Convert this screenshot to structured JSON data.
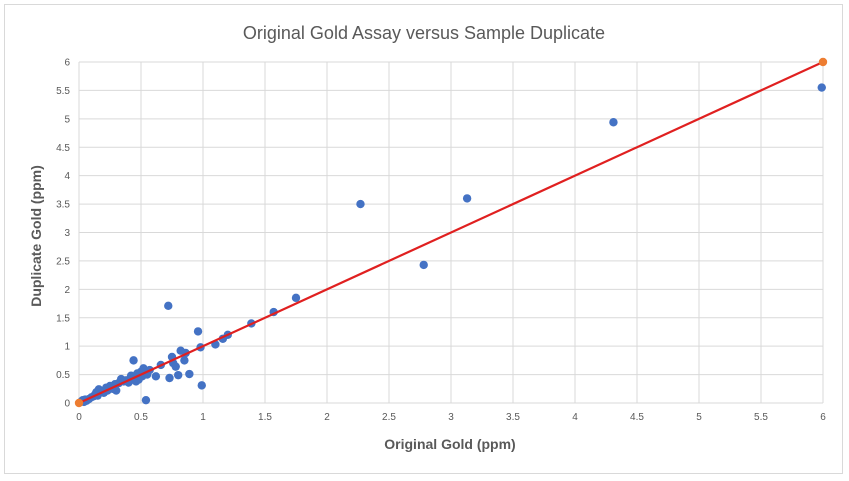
{
  "chart_data": {
    "type": "scatter",
    "title": "Original Gold Assay versus Sample Duplicate",
    "xlabel": "Original Gold (ppm)",
    "ylabel": "Duplicate Gold (ppm)",
    "xlim": [
      0,
      6
    ],
    "ylim": [
      0,
      6
    ],
    "x_ticks": [
      "0",
      "0.5",
      "1",
      "1.5",
      "2",
      "2.5",
      "3",
      "3.5",
      "4",
      "4.5",
      "5",
      "5.5",
      "6"
    ],
    "y_ticks": [
      "0",
      "0.5",
      "1",
      "1.5",
      "2",
      "2.5",
      "3",
      "3.5",
      "4",
      "4.5",
      "5",
      "5.5",
      "6"
    ],
    "grid": true,
    "colors": {
      "points": "#4472c4",
      "line": "#e02020",
      "line_endpoints": "#ed7d31",
      "grid": "#d9d9d9",
      "text": "#595959"
    },
    "series": [
      {
        "points": [
          [
            0.02,
            0.03
          ],
          [
            0.03,
            0.05
          ],
          [
            0.04,
            0.02
          ],
          [
            0.05,
            0.06
          ],
          [
            0.06,
            0.04
          ],
          [
            0.08,
            0.07
          ],
          [
            0.1,
            0.1
          ],
          [
            0.12,
            0.12
          ],
          [
            0.13,
            0.15
          ],
          [
            0.14,
            0.19
          ],
          [
            0.15,
            0.13
          ],
          [
            0.16,
            0.24
          ],
          [
            0.18,
            0.21
          ],
          [
            0.2,
            0.18
          ],
          [
            0.22,
            0.27
          ],
          [
            0.23,
            0.22
          ],
          [
            0.25,
            0.3
          ],
          [
            0.27,
            0.25
          ],
          [
            0.29,
            0.33
          ],
          [
            0.3,
            0.22
          ],
          [
            0.32,
            0.35
          ],
          [
            0.34,
            0.42
          ],
          [
            0.36,
            0.38
          ],
          [
            0.38,
            0.4
          ],
          [
            0.4,
            0.36
          ],
          [
            0.42,
            0.48
          ],
          [
            0.44,
            0.75
          ],
          [
            0.45,
            0.43
          ],
          [
            0.46,
            0.38
          ],
          [
            0.47,
            0.52
          ],
          [
            0.48,
            0.41
          ],
          [
            0.5,
            0.55
          ],
          [
            0.51,
            0.47
          ],
          [
            0.52,
            0.61
          ],
          [
            0.54,
            0.05
          ],
          [
            0.55,
            0.5
          ],
          [
            0.57,
            0.58
          ],
          [
            0.62,
            0.47
          ],
          [
            0.66,
            0.67
          ],
          [
            0.72,
            1.71
          ],
          [
            0.73,
            0.44
          ],
          [
            0.75,
            0.81
          ],
          [
            0.76,
            0.7
          ],
          [
            0.78,
            0.64
          ],
          [
            0.8,
            0.49
          ],
          [
            0.82,
            0.92
          ],
          [
            0.85,
            0.75
          ],
          [
            0.86,
            0.88
          ],
          [
            0.89,
            0.51
          ],
          [
            0.96,
            1.26
          ],
          [
            0.98,
            0.98
          ],
          [
            0.99,
            0.31
          ],
          [
            1.1,
            1.03
          ],
          [
            1.16,
            1.13
          ],
          [
            1.2,
            1.2
          ],
          [
            1.39,
            1.4
          ],
          [
            1.57,
            1.6
          ],
          [
            1.75,
            1.85
          ],
          [
            2.27,
            3.5
          ],
          [
            2.78,
            2.43
          ],
          [
            3.13,
            3.6
          ],
          [
            4.31,
            4.94
          ],
          [
            5.99,
            5.55
          ]
        ]
      },
      {
        "type": "line",
        "points": [
          [
            0,
            0
          ],
          [
            6,
            6
          ]
        ]
      }
    ]
  }
}
